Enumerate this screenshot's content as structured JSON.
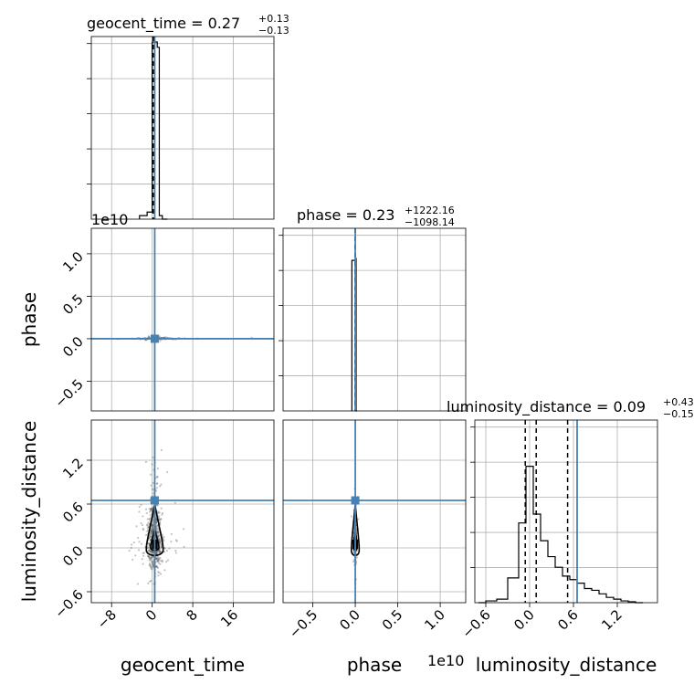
{
  "colors": {
    "truth": "#4682b4",
    "hist": "#000000",
    "grid": "#b0b0b0",
    "points": "#555555"
  },
  "chart_data": {
    "type": "corner",
    "parameters": [
      "geocent_time",
      "phase",
      "luminosity_distance"
    ],
    "axis_labels": {
      "geocent_time": "geocent_time",
      "phase": "phase",
      "luminosity_distance": "luminosity_distance"
    },
    "titles": {
      "geocent_time": {
        "name": "geocent_time",
        "value": "0.27",
        "plus": "+0.13",
        "minus": "−0.13"
      },
      "phase": {
        "name": "phase",
        "value": "0.23",
        "plus": "+1222.16",
        "minus": "−1098.14"
      },
      "luminosity_distance": {
        "name": "luminosity_distance",
        "value": "0.09",
        "plus": "+0.43",
        "minus": "−0.15"
      }
    },
    "offset_text": "1e10",
    "ranges": {
      "geocent_time": [
        -12,
        24
      ],
      "phase": [
        -0.85,
        1.3
      ],
      "luminosity_distance": [
        -0.75,
        1.75
      ]
    },
    "ticks": {
      "geocent_time": {
        "values": [
          -8,
          0,
          8,
          16
        ],
        "labels": [
          "−8",
          "0",
          "8",
          "16"
        ]
      },
      "phase": {
        "values": [
          -0.5,
          0.0,
          0.5,
          1.0
        ],
        "labels": [
          "−0.5",
          "0.0",
          "0.5",
          "1.0"
        ]
      },
      "luminosity_distance": {
        "values": [
          -0.6,
          0.0,
          0.6,
          1.2
        ],
        "labels": [
          "−0.6",
          "0.0",
          "0.6",
          "1.2"
        ]
      }
    },
    "truths": {
      "geocent_time": 0.5,
      "phase": 0.0,
      "luminosity_distance": 0.65
    },
    "quantiles": {
      "geocent_time": [
        0.14,
        0.27,
        0.4
      ],
      "phase": [
        0.0,
        0.0,
        0.0
      ],
      "luminosity_distance": [
        -0.06,
        0.09,
        0.52
      ]
    },
    "hist_1d": {
      "geocent_time": {
        "edges": [
          -2.5,
          -1.0,
          0.0,
          1.0,
          1.4,
          2.0,
          3.0
        ],
        "counts": [
          0.02,
          0.04,
          1.0,
          0.97,
          0.02,
          0.0
        ]
      },
      "phase": {
        "edges": [
          -0.04,
          0.0,
          0.01,
          0.02
        ],
        "counts": [
          0.85,
          0.86,
          0.0
        ]
      },
      "luminosity_distance": {
        "edges": [
          -0.7,
          -0.6,
          -0.45,
          -0.3,
          -0.15,
          -0.05,
          0.05,
          0.15,
          0.25,
          0.35,
          0.45,
          0.55,
          0.65,
          0.75,
          0.85,
          0.95,
          1.05,
          1.15,
          1.25,
          1.35,
          1.45,
          1.55
        ],
        "counts": [
          0.0,
          0.01,
          0.02,
          0.14,
          0.45,
          0.77,
          0.5,
          0.35,
          0.26,
          0.2,
          0.15,
          0.13,
          0.11,
          0.08,
          0.07,
          0.05,
          0.03,
          0.02,
          0.01,
          0.005,
          0.0
        ]
      }
    },
    "hist_scale": {
      "geocent_time": 0.0,
      "phase": 0.0,
      "luminosity_distance": 0.0
    },
    "scatter_center": {
      "geocent_time": 0.5,
      "phase": 0.0,
      "luminosity_distance": 0.05
    },
    "grid": true
  }
}
